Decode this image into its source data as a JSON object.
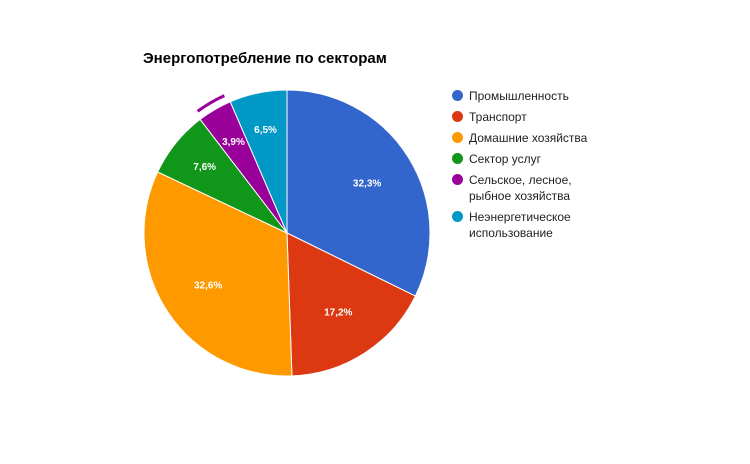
{
  "chart_data": {
    "type": "pie",
    "title": "Энергопотребление по секторам",
    "categories": [
      "Промышленность",
      "Транспорт",
      "Домашние хозяйства",
      "Сектор услуг",
      "Сельское, лесное, рыбное хозяйства",
      "Неэнергетическое использование"
    ],
    "values": [
      32.3,
      17.2,
      32.6,
      7.6,
      3.9,
      6.5
    ],
    "data_labels": [
      "32,3%",
      "17,2%",
      "32,6%",
      "7,6%",
      "3,9%",
      "6,5%"
    ],
    "colors": [
      "#3366cc",
      "#dc3912",
      "#ff9900",
      "#109618",
      "#990099",
      "#0099c6"
    ],
    "legend_position": "right",
    "legend_labels": [
      [
        "Промышленность"
      ],
      [
        "Транспорт"
      ],
      [
        "Домашние хозяйства"
      ],
      [
        "Сектор услуг"
      ],
      [
        "Сельское, лесное,",
        "рыбное хозяйства"
      ],
      [
        "Неэнергетическое",
        "использование"
      ]
    ]
  }
}
